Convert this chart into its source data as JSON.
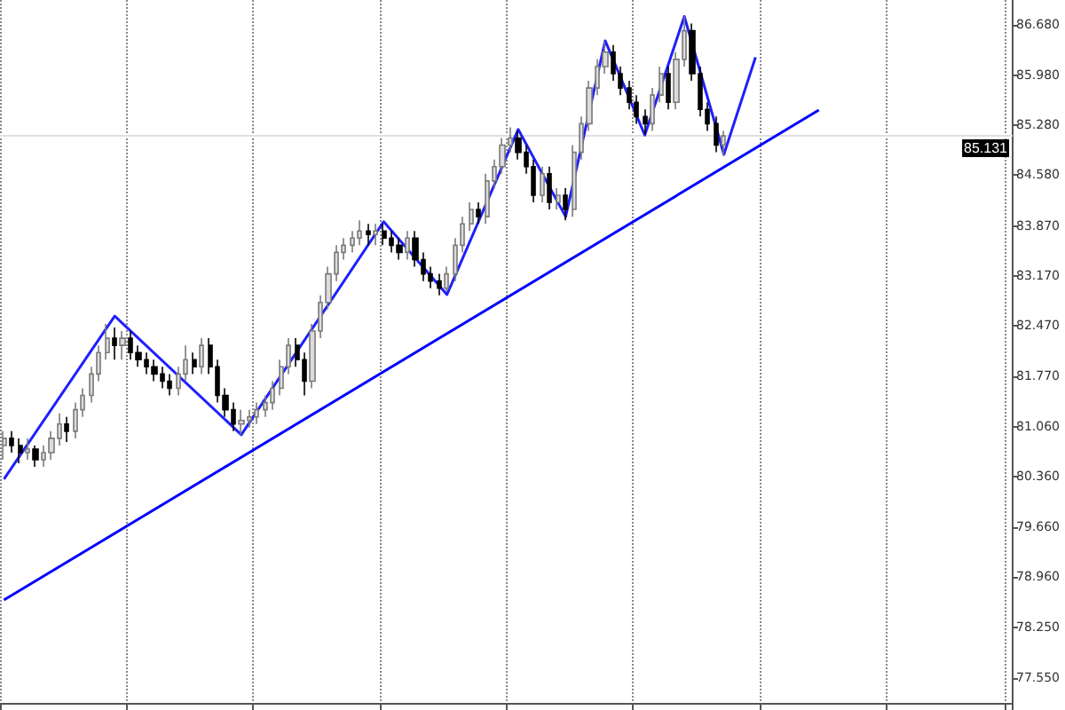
{
  "chart_data": {
    "type": "candlestick",
    "categories": [
      null,
      null,
      null,
      null,
      null,
      null,
      null,
      null,
      null,
      null,
      null,
      null,
      null,
      null,
      null,
      null,
      null,
      null,
      null,
      null,
      null,
      null,
      null,
      null,
      null,
      null,
      null,
      null,
      null,
      null,
      null,
      null,
      null,
      null,
      null,
      null,
      null,
      null,
      null,
      null,
      null,
      null,
      null,
      null,
      null,
      null,
      null,
      null,
      null,
      null,
      null,
      null,
      null,
      null,
      null,
      null,
      null,
      null,
      null,
      null,
      null,
      null,
      null,
      null,
      null,
      null,
      null,
      null,
      null,
      null,
      null,
      null,
      null,
      null,
      null,
      null,
      null,
      null,
      null,
      null,
      null,
      null,
      null,
      null,
      null,
      null,
      null,
      null,
      null,
      null,
      null,
      null,
      null,
      null,
      null,
      null,
      null,
      null,
      null,
      null,
      null,
      null,
      null,
      null,
      null,
      null,
      null,
      null,
      null,
      null,
      null,
      null,
      null,
      null,
      null,
      null,
      null,
      null,
      null,
      null,
      null,
      null,
      null,
      null,
      null,
      null,
      null,
      null
    ],
    "ohlc": [
      [
        80.8,
        81.0,
        80.6,
        80.9
      ],
      [
        80.9,
        81.0,
        80.7,
        80.8
      ],
      [
        80.8,
        80.9,
        80.55,
        80.7
      ],
      [
        80.7,
        80.9,
        80.6,
        80.75
      ],
      [
        80.75,
        80.8,
        80.5,
        80.6
      ],
      [
        80.6,
        80.8,
        80.5,
        80.7
      ],
      [
        80.7,
        81.0,
        80.6,
        80.9
      ],
      [
        80.9,
        81.25,
        80.8,
        81.1
      ],
      [
        81.1,
        81.2,
        80.85,
        81.0
      ],
      [
        81.0,
        81.4,
        80.9,
        81.3
      ],
      [
        81.3,
        81.6,
        81.2,
        81.5
      ],
      [
        81.5,
        81.9,
        81.4,
        81.8
      ],
      [
        81.8,
        82.2,
        81.7,
        82.1
      ],
      [
        82.1,
        82.5,
        82.0,
        82.3
      ],
      [
        82.3,
        82.45,
        82.0,
        82.2
      ],
      [
        82.2,
        82.4,
        82.0,
        82.3
      ],
      [
        82.3,
        82.4,
        82.0,
        82.1
      ],
      [
        82.1,
        82.2,
        81.9,
        82.0
      ],
      [
        82.0,
        82.1,
        81.8,
        81.9
      ],
      [
        81.9,
        82.0,
        81.7,
        81.8
      ],
      [
        81.8,
        81.9,
        81.6,
        81.7
      ],
      [
        81.7,
        81.8,
        81.5,
        81.6
      ],
      [
        81.6,
        81.9,
        81.5,
        81.8
      ],
      [
        81.8,
        82.2,
        81.7,
        82.0
      ],
      [
        82.0,
        82.1,
        81.8,
        81.9
      ],
      [
        81.9,
        82.3,
        81.8,
        82.2
      ],
      [
        82.2,
        82.3,
        81.8,
        81.9
      ],
      [
        81.9,
        82.0,
        81.4,
        81.5
      ],
      [
        81.5,
        81.6,
        81.2,
        81.3
      ],
      [
        81.3,
        81.4,
        81.0,
        81.1
      ],
      [
        81.1,
        81.3,
        80.95,
        81.15
      ],
      [
        81.15,
        81.3,
        81.05,
        81.2
      ],
      [
        81.2,
        81.4,
        81.1,
        81.3
      ],
      [
        81.3,
        81.5,
        81.2,
        81.4
      ],
      [
        81.4,
        81.7,
        81.3,
        81.6
      ],
      [
        81.6,
        82.0,
        81.5,
        81.9
      ],
      [
        81.9,
        82.3,
        81.8,
        82.2
      ],
      [
        82.2,
        82.3,
        81.9,
        82.0
      ],
      [
        82.0,
        82.1,
        81.5,
        81.7
      ],
      [
        81.7,
        82.5,
        81.6,
        82.4
      ],
      [
        82.4,
        82.9,
        82.3,
        82.8
      ],
      [
        82.8,
        83.3,
        82.7,
        83.2
      ],
      [
        83.2,
        83.6,
        83.1,
        83.5
      ],
      [
        83.5,
        83.7,
        83.4,
        83.6
      ],
      [
        83.6,
        83.8,
        83.5,
        83.7
      ],
      [
        83.7,
        83.95,
        83.6,
        83.8
      ],
      [
        83.8,
        83.9,
        83.6,
        83.75
      ],
      [
        83.75,
        83.9,
        83.6,
        83.8
      ],
      [
        83.8,
        83.9,
        83.6,
        83.7
      ],
      [
        83.7,
        83.8,
        83.5,
        83.6
      ],
      [
        83.6,
        83.7,
        83.4,
        83.5
      ],
      [
        83.5,
        83.8,
        83.4,
        83.7
      ],
      [
        83.7,
        83.8,
        83.3,
        83.4
      ],
      [
        83.4,
        83.5,
        83.1,
        83.2
      ],
      [
        83.2,
        83.3,
        83.0,
        83.1
      ],
      [
        83.1,
        83.2,
        82.9,
        83.0
      ],
      [
        83.0,
        83.3,
        82.95,
        83.2
      ],
      [
        83.2,
        83.7,
        83.1,
        83.6
      ],
      [
        83.6,
        84.0,
        83.5,
        83.9
      ],
      [
        83.9,
        84.2,
        83.8,
        84.1
      ],
      [
        84.1,
        84.2,
        83.9,
        84.0
      ],
      [
        84.0,
        84.6,
        83.9,
        84.5
      ],
      [
        84.5,
        84.8,
        84.4,
        84.7
      ],
      [
        84.7,
        85.1,
        84.6,
        85.0
      ],
      [
        85.0,
        85.25,
        84.9,
        85.1
      ],
      [
        85.1,
        85.2,
        84.8,
        84.9
      ],
      [
        84.9,
        85.0,
        84.6,
        84.7
      ],
      [
        84.7,
        84.8,
        84.2,
        84.3
      ],
      [
        84.3,
        84.7,
        84.2,
        84.6
      ],
      [
        84.6,
        84.7,
        84.1,
        84.2
      ],
      [
        84.2,
        84.4,
        84.1,
        84.3
      ],
      [
        84.3,
        84.4,
        83.95,
        84.1
      ],
      [
        84.1,
        85.0,
        84.0,
        84.9
      ],
      [
        84.9,
        85.4,
        84.8,
        85.3
      ],
      [
        85.3,
        85.9,
        85.2,
        85.8
      ],
      [
        85.8,
        86.2,
        85.7,
        86.1
      ],
      [
        86.1,
        86.45,
        86.0,
        86.3
      ],
      [
        86.3,
        86.4,
        85.9,
        86.0
      ],
      [
        86.0,
        86.1,
        85.7,
        85.8
      ],
      [
        85.8,
        85.9,
        85.5,
        85.6
      ],
      [
        85.6,
        85.7,
        85.3,
        85.4
      ],
      [
        85.4,
        85.5,
        85.15,
        85.3
      ],
      [
        85.3,
        85.8,
        85.2,
        85.7
      ],
      [
        85.7,
        86.1,
        85.6,
        86.0
      ],
      [
        86.0,
        86.1,
        85.5,
        85.6
      ],
      [
        85.6,
        86.3,
        85.5,
        86.2
      ],
      [
        86.2,
        86.8,
        86.1,
        86.6
      ],
      [
        86.6,
        86.7,
        85.9,
        86.0
      ],
      [
        86.0,
        86.1,
        85.4,
        85.5
      ],
      [
        85.5,
        85.6,
        85.2,
        85.3
      ],
      [
        85.3,
        85.4,
        84.9,
        85.0
      ],
      [
        85.0,
        85.2,
        84.85,
        85.13
      ],
      null,
      null,
      null,
      null,
      null,
      null,
      null,
      null,
      null,
      null,
      null,
      null,
      null,
      null,
      null,
      null,
      null,
      null,
      null,
      null,
      null,
      null,
      null,
      null,
      null,
      null,
      null,
      null,
      null,
      null,
      null,
      null,
      null,
      null,
      null,
      null
    ],
    "series": [
      {
        "type": "line",
        "color": "#1f1fff",
        "values": [
          80.33,
          null,
          null,
          null,
          null,
          null,
          null,
          null,
          null,
          null,
          null,
          null,
          null,
          null,
          82.61,
          null,
          null,
          null,
          null,
          null,
          null,
          null,
          null,
          null,
          null,
          null,
          null,
          null,
          null,
          null,
          80.95,
          null,
          null,
          null,
          null,
          null,
          null,
          null,
          null,
          null,
          null,
          null,
          null,
          null,
          null,
          null,
          null,
          null,
          83.93,
          null,
          null,
          null,
          null,
          null,
          null,
          null,
          82.91,
          null,
          null,
          null,
          null,
          null,
          null,
          null,
          null,
          85.22,
          null,
          null,
          null,
          null,
          null,
          84.0,
          null,
          null,
          null,
          null,
          86.46,
          null,
          null,
          null,
          null,
          85.14,
          null,
          null,
          null,
          null,
          86.8,
          null,
          null,
          null,
          null,
          84.87,
          null,
          null,
          null,
          86.23,
          null,
          null,
          null,
          null,
          null,
          null,
          null,
          null,
          null,
          null,
          null,
          null,
          null,
          null,
          null,
          null,
          null,
          null,
          null,
          null,
          null,
          null,
          null,
          null,
          null,
          null,
          null,
          null,
          null,
          null,
          null,
          null
        ]
      },
      {
        "type": "line",
        "color": "#0000ff",
        "values": [
          78.64,
          null,
          null,
          null,
          null,
          null,
          null,
          null,
          null,
          null,
          null,
          null,
          null,
          null,
          null,
          null,
          null,
          null,
          null,
          null,
          null,
          null,
          null,
          null,
          null,
          null,
          null,
          null,
          null,
          null,
          null,
          null,
          null,
          null,
          null,
          null,
          null,
          null,
          null,
          null,
          null,
          null,
          null,
          null,
          null,
          null,
          null,
          null,
          null,
          null,
          null,
          null,
          null,
          null,
          null,
          null,
          null,
          null,
          null,
          null,
          null,
          null,
          null,
          null,
          null,
          null,
          null,
          null,
          null,
          null,
          null,
          null,
          null,
          null,
          null,
          null,
          null,
          null,
          null,
          null,
          null,
          null,
          null,
          null,
          null,
          null,
          null,
          null,
          null,
          null,
          null,
          null,
          null,
          null,
          null,
          null,
          null,
          null,
          null,
          null,
          null,
          null,
          null,
          85.49,
          null,
          null,
          null,
          null,
          null,
          null,
          null,
          null,
          null,
          null,
          null,
          null,
          null,
          null,
          null,
          null,
          null,
          null,
          null,
          null,
          null,
          null,
          null,
          null
        ]
      }
    ],
    "ylim": [
      77.2,
      87.03
    ],
    "yticks": [
      {
        "value": 86.68,
        "label": "86.680"
      },
      {
        "value": 85.98,
        "label": "85.980"
      },
      {
        "value": 85.28,
        "label": "85.280"
      },
      {
        "value": 84.58,
        "label": "84.580"
      },
      {
        "value": 83.87,
        "label": "83.870"
      },
      {
        "value": 83.17,
        "label": "83.170"
      },
      {
        "value": 82.47,
        "label": "82.470"
      },
      {
        "value": 81.77,
        "label": "81.770"
      },
      {
        "value": 81.06,
        "label": "81.060"
      },
      {
        "value": 80.36,
        "label": "80.360"
      },
      {
        "value": 79.66,
        "label": "79.660"
      },
      {
        "value": 78.96,
        "label": "78.960"
      },
      {
        "value": 78.25,
        "label": "78.250"
      },
      {
        "value": 77.55,
        "label": "77.550"
      }
    ],
    "ref_lines": [
      {
        "axis": "y",
        "value": 85.131,
        "label": "85.131",
        "color": "#e0e0e0"
      }
    ],
    "tick_labels": "y",
    "grid": "x",
    "line_style": "solid"
  }
}
